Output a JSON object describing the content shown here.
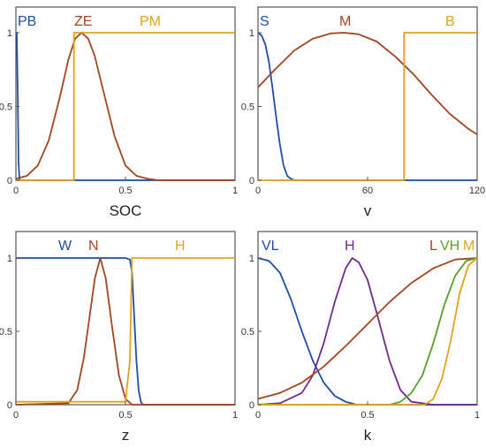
{
  "colors": {
    "blue": "#1f4ea8",
    "brown": "#a1461f",
    "gold": "#e3a21a",
    "purple": "#6f2a8e",
    "green": "#5a9e2b",
    "axis": "#555555"
  },
  "chart_data": [
    {
      "type": "line",
      "xlabel": "SOC",
      "xlim": [
        0,
        1
      ],
      "ylim": [
        0,
        1
      ],
      "xticks": [
        0,
        0.5,
        1
      ],
      "yticks": [
        0,
        0.5,
        1
      ],
      "xtick_labels": [
        "0",
        "0.5",
        "1"
      ],
      "ytick_labels": [
        "0",
        "0.5",
        "1"
      ],
      "series": [
        {
          "name": "PB",
          "color": "blue",
          "x": [
            0,
            0.004,
            0.008,
            0.012,
            0.016,
            0.02,
            1
          ],
          "y": [
            1,
            1,
            0.6,
            0.12,
            0.01,
            0,
            0
          ]
        },
        {
          "name": "ZE",
          "color": "brown",
          "x": [
            0,
            0.05,
            0.1,
            0.15,
            0.2,
            0.24,
            0.27,
            0.3,
            0.33,
            0.36,
            0.4,
            0.45,
            0.5,
            0.55,
            0.6,
            0.65,
            1
          ],
          "y": [
            0.01,
            0.03,
            0.1,
            0.27,
            0.56,
            0.82,
            0.96,
            1,
            0.96,
            0.84,
            0.6,
            0.3,
            0.1,
            0.03,
            0.01,
            0,
            0
          ]
        },
        {
          "name": "PM",
          "color": "gold",
          "x": [
            0,
            0.265,
            0.265,
            1
          ],
          "y": [
            0,
            0,
            1,
            1
          ]
        }
      ],
      "legend_labels": [
        "PB",
        "ZE",
        "PM"
      ]
    },
    {
      "type": "line",
      "xlabel": "v",
      "xlim": [
        0,
        120
      ],
      "ylim": [
        0,
        1
      ],
      "xticks": [
        0,
        60,
        120
      ],
      "yticks": [
        0,
        0.5,
        1
      ],
      "xtick_labels": [
        "0",
        "60",
        "120"
      ],
      "ytick_labels": [
        "0",
        "0.5",
        "1"
      ],
      "series": [
        {
          "name": "S",
          "color": "blue",
          "x": [
            0,
            2,
            4,
            6,
            8,
            10,
            12,
            14,
            16,
            18,
            20,
            120
          ],
          "y": [
            1,
            0.98,
            0.92,
            0.8,
            0.62,
            0.42,
            0.24,
            0.1,
            0.03,
            0.01,
            0,
            0
          ]
        },
        {
          "name": "M",
          "color": "brown",
          "x": [
            0,
            10,
            20,
            30,
            40,
            47,
            55,
            65,
            75,
            85,
            95,
            105,
            115,
            120
          ],
          "y": [
            0.63,
            0.76,
            0.88,
            0.96,
            0.995,
            1,
            0.99,
            0.94,
            0.84,
            0.72,
            0.58,
            0.45,
            0.35,
            0.31
          ]
        },
        {
          "name": "B",
          "color": "gold",
          "x": [
            0,
            80,
            80,
            120
          ],
          "y": [
            0,
            0,
            1,
            1
          ]
        }
      ],
      "legend_labels": [
        "S",
        "M",
        "B"
      ]
    },
    {
      "type": "line",
      "xlabel": "z",
      "xlim": [
        0,
        1
      ],
      "ylim": [
        0,
        1
      ],
      "xticks": [
        0,
        0.5,
        1
      ],
      "yticks": [
        0,
        0.5,
        1
      ],
      "xtick_labels": [
        "0",
        "0.5",
        "1"
      ],
      "ytick_labels": [
        "0",
        "0.5",
        "1"
      ],
      "series": [
        {
          "name": "W",
          "color": "blue",
          "x": [
            0,
            0.5,
            0.52,
            0.53,
            0.54,
            0.55,
            0.56,
            0.57,
            0.58,
            1
          ],
          "y": [
            1,
            1,
            0.99,
            0.9,
            0.6,
            0.3,
            0.1,
            0.02,
            0,
            0
          ]
        },
        {
          "name": "N",
          "color": "brown",
          "x": [
            0,
            0.24,
            0.28,
            0.31,
            0.34,
            0.36,
            0.385,
            0.41,
            0.44,
            0.47,
            0.5,
            0.53,
            1
          ],
          "y": [
            0,
            0.01,
            0.1,
            0.32,
            0.64,
            0.86,
            1,
            0.86,
            0.52,
            0.2,
            0.04,
            0,
            0
          ]
        },
        {
          "name": "H",
          "color": "gold",
          "x": [
            0,
            0.5,
            0.52,
            0.53,
            1
          ],
          "y": [
            0.02,
            0.02,
            0.3,
            1,
            1
          ]
        }
      ],
      "legend_labels": [
        "W",
        "N",
        "H"
      ]
    },
    {
      "type": "line",
      "xlabel": "k",
      "xlim": [
        0,
        1
      ],
      "ylim": [
        0,
        1
      ],
      "xticks": [
        0,
        0.5,
        1
      ],
      "yticks": [
        0,
        0.5,
        1
      ],
      "xtick_labels": [
        "0",
        "0.5",
        "1"
      ],
      "ytick_labels": [
        "0",
        "0.5",
        "1"
      ],
      "series": [
        {
          "name": "VL",
          "color": "blue",
          "x": [
            0,
            0.05,
            0.1,
            0.15,
            0.2,
            0.25,
            0.3,
            0.35,
            0.4,
            0.45,
            0.5,
            1
          ],
          "y": [
            1,
            0.98,
            0.9,
            0.72,
            0.5,
            0.3,
            0.15,
            0.06,
            0.02,
            0,
            0,
            0
          ]
        },
        {
          "name": "H",
          "color": "purple",
          "x": [
            0,
            0.1,
            0.2,
            0.25,
            0.3,
            0.35,
            0.4,
            0.43,
            0.46,
            0.5,
            0.55,
            0.6,
            0.65,
            0.7,
            0.8,
            1
          ],
          "y": [
            0,
            0.01,
            0.08,
            0.2,
            0.42,
            0.7,
            0.93,
            1,
            0.97,
            0.85,
            0.58,
            0.3,
            0.1,
            0.02,
            0,
            0
          ]
        },
        {
          "name": "L",
          "color": "brown",
          "x": [
            0,
            0.1,
            0.2,
            0.3,
            0.4,
            0.5,
            0.6,
            0.7,
            0.8,
            0.9,
            1
          ],
          "y": [
            0.04,
            0.08,
            0.15,
            0.26,
            0.4,
            0.55,
            0.7,
            0.83,
            0.93,
            0.99,
            1
          ]
        },
        {
          "name": "VH",
          "color": "green",
          "x": [
            0,
            0.6,
            0.65,
            0.7,
            0.75,
            0.8,
            0.85,
            0.9,
            0.95,
            1
          ],
          "y": [
            0,
            0,
            0.02,
            0.08,
            0.2,
            0.42,
            0.68,
            0.88,
            0.98,
            1
          ]
        },
        {
          "name": "M",
          "color": "gold",
          "x": [
            0,
            0.76,
            0.8,
            0.84,
            0.88,
            0.92,
            0.96,
            1
          ],
          "y": [
            0,
            0,
            0.04,
            0.18,
            0.44,
            0.76,
            0.95,
            1
          ]
        }
      ],
      "legend_labels": [
        "VL",
        "H",
        "L",
        "VH",
        "M"
      ]
    }
  ]
}
